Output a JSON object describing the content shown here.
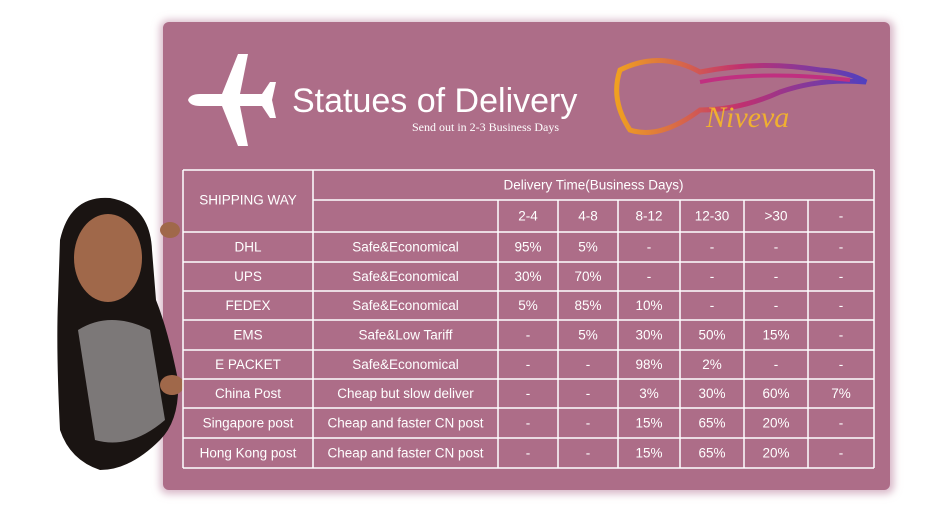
{
  "header": {
    "title": "Statues of Delivery",
    "subtitle": "Send out in 2-3 Business Days",
    "logo": "Niveva"
  },
  "table": {
    "shipping_header": "SHIPPING WAY",
    "time_header": "Delivery Time(Business Days)",
    "columns": [
      "2-4",
      "4-8",
      "8-12",
      "12-30",
      ">30",
      "-"
    ],
    "rows": [
      [
        "DHL",
        "Safe&Economical",
        "95%",
        "5%",
        "-",
        "-",
        "-",
        "-"
      ],
      [
        "UPS",
        "Safe&Economical",
        "30%",
        "70%",
        "-",
        "-",
        "-",
        "-"
      ],
      [
        "FEDEX",
        "Safe&Economical",
        "5%",
        "85%",
        "10%",
        "-",
        "-",
        "-"
      ],
      [
        "EMS",
        "Safe&Low Tariff",
        "-",
        "5%",
        "30%",
        "50%",
        "15%",
        "-"
      ],
      [
        "E PACKET",
        "Safe&Economical",
        "-",
        "-",
        "98%",
        "2%",
        "-",
        "-"
      ],
      [
        "China Post",
        "Cheap but slow deliver",
        "-",
        "-",
        "3%",
        "30%",
        "60%",
        "7%"
      ],
      [
        "Singapore post",
        "Cheap and faster CN post",
        "-",
        "-",
        "15%",
        "65%",
        "20%",
        "-"
      ],
      [
        "Hong Kong post",
        "Cheap and faster CN post",
        "-",
        "-",
        "15%",
        "65%",
        "20%",
        "-"
      ]
    ]
  }
}
